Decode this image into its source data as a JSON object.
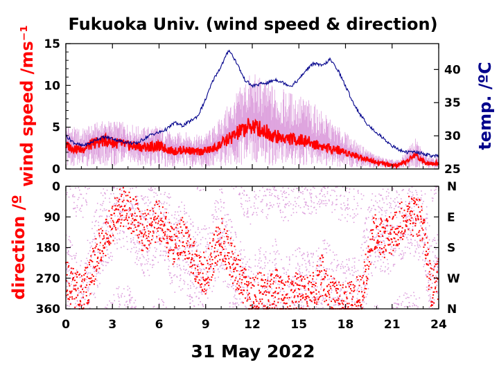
{
  "chart_data": [
    {
      "type": "line",
      "title": "Fukuoka Univ. (wind speed & direction)",
      "ylabel": "wind speed /ms⁻¹",
      "y2label": "temp. /ºC",
      "ylim": [
        0,
        15
      ],
      "y2lim": [
        25,
        43.9
      ],
      "yticks": [
        "0",
        "5",
        "10",
        "15"
      ],
      "y2ticks": [
        "25",
        "30",
        "35",
        "40"
      ],
      "xlim": [
        0,
        24
      ],
      "colors": {
        "wind_mean": "#ff0000",
        "wind_gust": "#dda0dd",
        "temperature": "#00008b"
      },
      "series": [
        {
          "key": "wind_mean",
          "axis": "left",
          "x": [
            0,
            0.5,
            1,
            1.5,
            2,
            2.5,
            3,
            3.5,
            4,
            4.5,
            5,
            5.5,
            6,
            6.5,
            7,
            7.5,
            8,
            8.5,
            9,
            9.5,
            10,
            10.5,
            11,
            11.5,
            12,
            12.5,
            13,
            13.5,
            14,
            14.5,
            15,
            15.5,
            16,
            16.5,
            17,
            17.5,
            18,
            18.5,
            19,
            19.5,
            20,
            20.5,
            21,
            21.5,
            22,
            22.5,
            23,
            23.5,
            24
          ],
          "values": [
            2.8,
            2.5,
            2.3,
            2.8,
            3.2,
            3.4,
            3.2,
            3.0,
            2.8,
            2.7,
            2.6,
            2.7,
            2.7,
            2.4,
            2.1,
            2.3,
            2.2,
            2.0,
            2.2,
            2.4,
            3.0,
            3.6,
            4.2,
            4.8,
            5.2,
            4.8,
            4.4,
            3.9,
            3.7,
            3.6,
            3.5,
            3.3,
            3.0,
            2.7,
            2.5,
            2.3,
            2.0,
            1.7,
            1.4,
            1.1,
            0.8,
            0.6,
            0.4,
            0.4,
            1.0,
            1.7,
            0.9,
            0.7,
            0.6
          ]
        },
        {
          "key": "wind_gust",
          "axis": "left",
          "x": [
            0,
            0.5,
            1,
            1.5,
            2,
            2.5,
            3,
            3.5,
            4,
            4.5,
            5,
            5.5,
            6,
            6.5,
            7,
            7.5,
            8,
            8.5,
            9,
            9.5,
            10,
            10.5,
            11,
            11.5,
            12,
            12.5,
            13,
            13.5,
            14,
            14.5,
            15,
            15.5,
            16,
            16.5,
            17,
            17.5,
            18,
            18.5,
            19,
            19.5,
            20,
            20.5,
            21,
            21.5,
            22,
            22.5,
            23,
            23.5,
            24
          ],
          "values": [
            4.6,
            4.2,
            4.0,
            4.4,
            4.8,
            5.0,
            5.0,
            4.8,
            4.6,
            4.4,
            4.2,
            4.4,
            4.4,
            3.9,
            3.5,
            3.8,
            3.6,
            3.4,
            3.6,
            4.2,
            5.2,
            6.5,
            7.5,
            8.8,
            9.5,
            9.0,
            8.6,
            8.0,
            7.6,
            7.4,
            7.2,
            6.8,
            6.2,
            5.6,
            4.8,
            4.2,
            3.6,
            3.0,
            2.4,
            1.9,
            1.4,
            1.1,
            0.9,
            0.9,
            2.0,
            3.0,
            1.8,
            1.4,
            1.2
          ]
        },
        {
          "key": "temperature",
          "axis": "right",
          "x": [
            0,
            0.5,
            1,
            1.5,
            2,
            2.5,
            3,
            3.5,
            4,
            4.5,
            5,
            5.5,
            6,
            6.5,
            7,
            7.5,
            8,
            8.5,
            9,
            9.5,
            10,
            10.5,
            11,
            11.5,
            12,
            12.5,
            13,
            13.5,
            14,
            14.5,
            15,
            15.5,
            16,
            16.5,
            17,
            17.5,
            18,
            18.5,
            19,
            19.5,
            20,
            20.5,
            21,
            21.5,
            22,
            22.5,
            23,
            23.5,
            24
          ],
          "values": [
            30.0,
            29.0,
            28.5,
            28.8,
            29.5,
            29.8,
            29.6,
            29.2,
            29.0,
            28.8,
            29.5,
            30.2,
            30.5,
            31.0,
            32.0,
            31.5,
            32.2,
            33.0,
            35.5,
            38.5,
            40.5,
            43.0,
            41.0,
            38.5,
            37.5,
            37.8,
            38.0,
            38.5,
            38.0,
            37.5,
            38.5,
            40.0,
            41.0,
            40.5,
            41.5,
            40.0,
            37.5,
            35.0,
            33.0,
            31.5,
            30.5,
            29.5,
            28.5,
            27.8,
            27.5,
            27.6,
            27.3,
            27.0,
            26.9
          ]
        }
      ]
    },
    {
      "type": "scatter",
      "xlabel": "31 May 2022",
      "ylabel": "direction /º",
      "ylim": [
        360,
        0
      ],
      "yticks": [
        "0",
        "90",
        "180",
        "270",
        "360"
      ],
      "y2ticks": [
        "N",
        "E",
        "S",
        "W",
        "N"
      ],
      "xlim": [
        0,
        24
      ],
      "xticks": [
        "0",
        "3",
        "6",
        "9",
        "12",
        "15",
        "18",
        "21",
        "24"
      ],
      "colors": {
        "direction_mean": "#ff0000",
        "direction_gust": "#dda0dd"
      },
      "series": [
        {
          "key": "direction_mean",
          "x": [
            0,
            0.5,
            1,
            1.5,
            2,
            2.5,
            3,
            3.5,
            4,
            4.5,
            5,
            5.5,
            6,
            6.5,
            7,
            7.5,
            8,
            8.5,
            9,
            9.5,
            10,
            10.5,
            11,
            11.5,
            12,
            12.5,
            13,
            13.5,
            14,
            14.5,
            15,
            15.5,
            16,
            16.5,
            17,
            17.5,
            18,
            18.5,
            19,
            19.5,
            20,
            20.5,
            21,
            21.5,
            22,
            22.5,
            23,
            23.5,
            24
          ],
          "values": [
            270,
            300,
            320,
            280,
            200,
            150,
            110,
            60,
            70,
            90,
            140,
            110,
            100,
            140,
            180,
            150,
            200,
            230,
            260,
            200,
            150,
            200,
            250,
            300,
            330,
            310,
            320,
            300,
            330,
            320,
            310,
            330,
            300,
            260,
            320,
            340,
            350,
            330,
            320,
            200,
            120,
            160,
            140,
            110,
            90,
            85,
            110,
            300,
            270
          ]
        },
        {
          "key": "direction_gust",
          "x": [
            0,
            0.5,
            1,
            1.5,
            2,
            2.5,
            3,
            3.5,
            4,
            4.5,
            5,
            5.5,
            6,
            6.5,
            7,
            7.5,
            8,
            8.5,
            9,
            9.5,
            10,
            10.5,
            11,
            11.5,
            12,
            12.5,
            13,
            13.5,
            14,
            14.5,
            15,
            15.5,
            16,
            16.5,
            17,
            17.5,
            18,
            18.5,
            19,
            19.5,
            20,
            20.5,
            21,
            21.5,
            22,
            22.5,
            23,
            23.5,
            24
          ],
          "values": [
            250,
            310,
            340,
            260,
            180,
            120,
            90,
            50,
            60,
            100,
            150,
            130,
            90,
            120,
            200,
            170,
            220,
            250,
            240,
            180,
            130,
            220,
            260,
            320,
            350,
            300,
            330,
            280,
            340,
            330,
            300,
            320,
            320,
            280,
            300,
            330,
            345,
            340,
            300,
            180,
            100,
            140,
            120,
            90,
            70,
            80,
            100,
            280,
            260
          ]
        }
      ]
    }
  ]
}
